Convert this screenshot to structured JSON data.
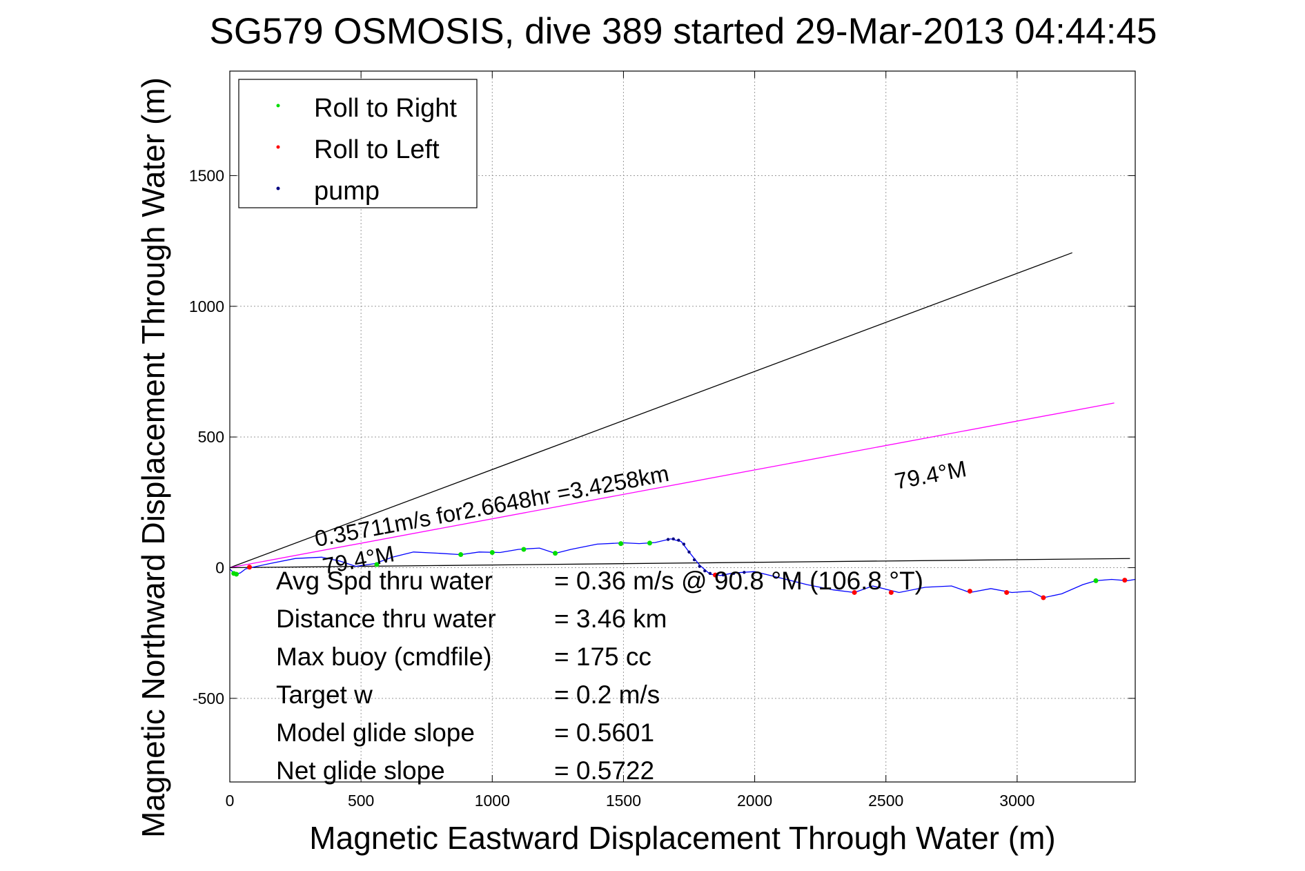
{
  "chart_data": {
    "type": "line",
    "title": "SG579 OSMOSIS, dive 389 started 29-Mar-2013 04:44:45",
    "xlabel": "Magnetic Eastward Displacement Through Water (m)",
    "ylabel": "Magnetic Northward Displacement Through Water (m)",
    "xlim": [
      0,
      3450
    ],
    "ylim": [
      -820,
      1900
    ],
    "xticks": [
      0,
      500,
      1000,
      1500,
      2000,
      2500,
      3000
    ],
    "yticks": [
      -500,
      0,
      500,
      1000,
      1500
    ],
    "grid": true,
    "legend_position": "top-left",
    "legend": [
      {
        "label": "Roll to Right",
        "color": "#00dd00"
      },
      {
        "label": "Roll to Left",
        "color": "#ff0000"
      },
      {
        "label": "pump",
        "color": "#000080"
      }
    ],
    "reference_lines": [
      {
        "name": "black-upper",
        "color": "#000000",
        "x": [
          0,
          3210
        ],
        "y": [
          0,
          1205
        ]
      },
      {
        "name": "magenta",
        "color": "#ff00ff",
        "x": [
          0,
          3370
        ],
        "y": [
          0,
          630
        ]
      },
      {
        "name": "black-lower",
        "color": "#000000",
        "x": [
          0,
          3430
        ],
        "y": [
          0,
          35
        ]
      }
    ],
    "track": {
      "color": "#0000ff",
      "x": [
        0,
        20,
        40,
        60,
        80,
        150,
        250,
        350,
        420,
        480,
        550,
        620,
        700,
        800,
        880,
        950,
        1030,
        1100,
        1180,
        1240,
        1300,
        1400,
        1500,
        1560,
        1620,
        1680,
        1720,
        1750,
        1790,
        1830,
        1870,
        1920,
        2000,
        2100,
        2200,
        2300,
        2380,
        2450,
        2550,
        2650,
        2750,
        2820,
        2900,
        2980,
        3050,
        3100,
        3170,
        3250,
        3300,
        3360,
        3420,
        3450
      ],
      "y": [
        -5,
        -25,
        -20,
        -5,
        0,
        15,
        35,
        40,
        25,
        5,
        15,
        40,
        60,
        55,
        50,
        60,
        58,
        70,
        75,
        55,
        70,
        90,
        95,
        92,
        96,
        110,
        100,
        60,
        10,
        -25,
        -30,
        -20,
        -15,
        -40,
        -65,
        -85,
        -95,
        -70,
        -95,
        -75,
        -70,
        -95,
        -80,
        -95,
        -90,
        -115,
        -100,
        -65,
        -50,
        -45,
        -50,
        -45
      ]
    },
    "markers": {
      "roll_right": {
        "color": "#00dd00",
        "x": [
          15,
          25,
          560,
          880,
          1000,
          1120,
          1240,
          1490,
          1600,
          3300
        ],
        "y": [
          -22,
          -25,
          12,
          50,
          58,
          70,
          55,
          92,
          94,
          -50
        ]
      },
      "roll_left": {
        "color": "#ff0000",
        "x": [
          75,
          1850,
          2380,
          2520,
          2820,
          2960,
          3100,
          3410
        ],
        "y": [
          2,
          -28,
          -95,
          -95,
          -90,
          -95,
          -115,
          -48
        ]
      },
      "pump": {
        "color": "#000080",
        "x": [
          1670,
          1690,
          1710,
          1730,
          1750,
          1770,
          1790,
          1810,
          1830,
          1880,
          1920,
          1960
        ],
        "y": [
          108,
          110,
          105,
          90,
          60,
          30,
          5,
          -12,
          -22,
          -28,
          -22,
          -18
        ]
      }
    },
    "annotations": [
      {
        "text": "0.35711m/s for2.6648hr =3.4258km",
        "x": 330,
        "y": 80,
        "angle_deg": 10.6
      },
      {
        "text": "79.4°M",
        "x": 2540,
        "y": 300,
        "angle_deg": 10.6
      },
      {
        "text": "79.4°M",
        "x": 360,
        "y": -25,
        "angle_deg": 10.6
      }
    ],
    "stats": [
      {
        "label": "Avg Spd thru water",
        "value": "=  0.36 m/s @  90.8 °M (106.8 °T)"
      },
      {
        "label": "Distance thru water",
        "value": "=  3.46 km"
      },
      {
        "label": "Max buoy (cmdfile)",
        "value": "= 175 cc"
      },
      {
        "label": "Target w",
        "value": "= 0.2 m/s"
      },
      {
        "label": "Model glide slope",
        "value": "= 0.5601"
      },
      {
        "label": "Net glide slope",
        "value": "= 0.5722"
      }
    ]
  }
}
